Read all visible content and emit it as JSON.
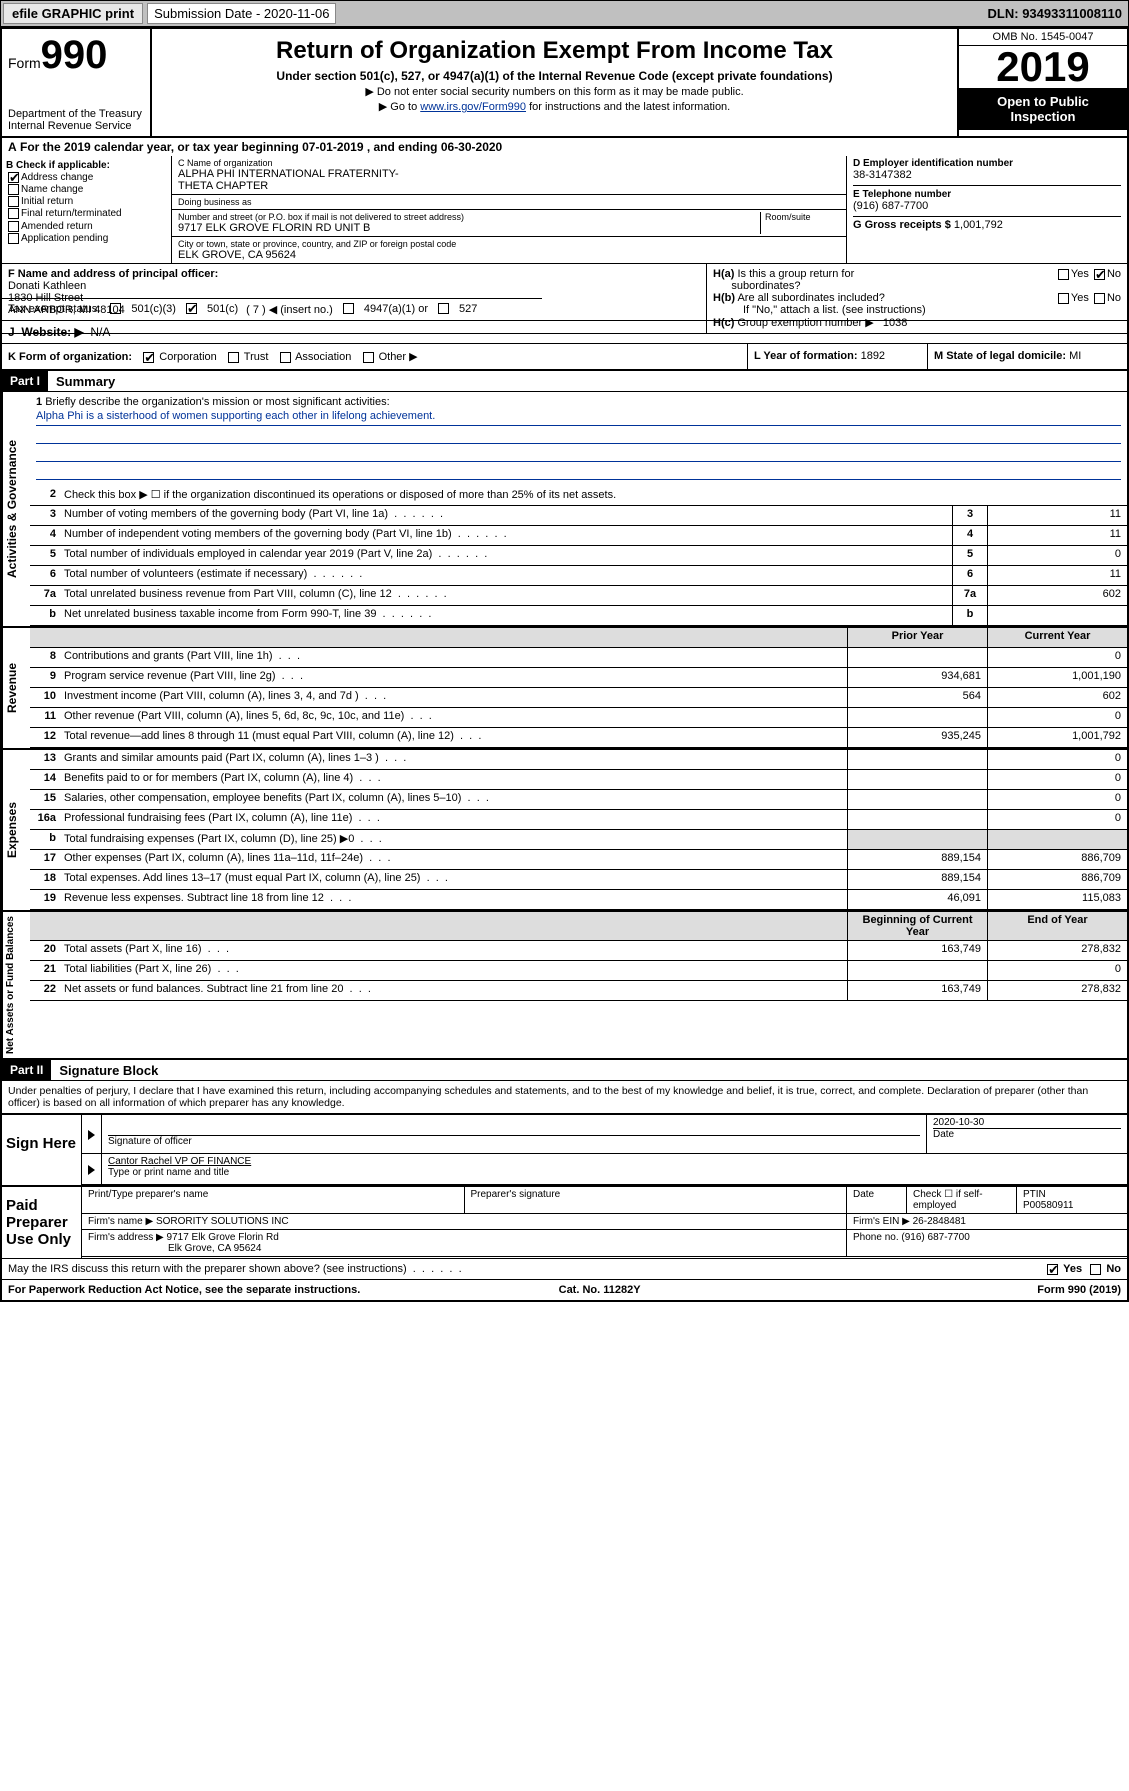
{
  "topbar": {
    "efile": "efile GRAPHIC print",
    "subLabel": "Submission Date - 2020-11-06",
    "dln": "DLN: 93493311008110"
  },
  "header": {
    "form": "Form",
    "num": "990",
    "dept": "Department of the Treasury",
    "irs": "Internal Revenue Service",
    "title": "Return of Organization Exempt From Income Tax",
    "sub": "Under section 501(c), 527, or 4947(a)(1) of the Internal Revenue Code (except private foundations)",
    "note1": "▶ Do not enter social security numbers on this form as it may be made public.",
    "note2a": "▶ Go to ",
    "note2link": "www.irs.gov/Form990",
    "note2b": " for instructions and the latest information.",
    "omb": "OMB No. 1545-0047",
    "year": "2019",
    "open": "Open to Public Inspection"
  },
  "periodA": {
    "text": "For the 2019 calendar year, or tax year beginning 07-01-2019    , and ending 06-30-2020",
    "label": "A"
  },
  "boxB": {
    "title": "B Check if applicable:",
    "items": [
      "Address change",
      "Name change",
      "Initial return",
      "Final return/terminated",
      "Amended return",
      "Application pending"
    ],
    "checked": [
      true,
      false,
      false,
      false,
      false,
      false
    ]
  },
  "boxC": {
    "nameLbl": "C Name of organization",
    "name": "ALPHA PHI INTERNATIONAL FRATERNITY-\nTHETA CHAPTER",
    "dbaLbl": "Doing business as",
    "dba": "",
    "addrLbl": "Number and street (or P.O. box if mail is not delivered to street address)",
    "room": "Room/suite",
    "addr": "9717 ELK GROVE FLORIN RD UNIT B",
    "cityLbl": "City or town, state or province, country, and ZIP or foreign postal code",
    "city": "ELK GROVE, CA  95624"
  },
  "boxD": {
    "einLbl": "D Employer identification number",
    "ein": "38-3147382",
    "telLbl": "E Telephone number",
    "tel": "(916) 687-7700",
    "grossLbl": "G Gross receipts $",
    "gross": "1,001,792"
  },
  "boxF": {
    "lbl": "F  Name and address of principal officer:",
    "name": "Donati Kathleen",
    "addr1": "1830 Hill Street",
    "addr2": "ANN ARBOR, MI  48104"
  },
  "boxH": {
    "a": "Is this a group return for",
    "a2": "subordinates?",
    "b": "Are all subordinates included?",
    "bnote": "If \"No,\" attach a list. (see instructions)",
    "c": "Group exemption number ▶",
    "cval": "1038"
  },
  "taxStatus": {
    "lbl": "Tax-exempt status:",
    "insert": "( 7 ) ◀ (insert no.)"
  },
  "rowJ": {
    "lbl": "Website: ▶",
    "val": "N/A"
  },
  "rowK": {
    "lbl": "K Form of organization:",
    "opts": [
      "Corporation",
      "Trust",
      "Association",
      "Other ▶"
    ],
    "checked": [
      true,
      false,
      false,
      false
    ],
    "yearLbl": "L Year of formation:",
    "year": "1892",
    "stateLbl": "M State of legal domicile:",
    "state": "MI"
  },
  "part1": {
    "label": "Part I",
    "title": "Summary"
  },
  "mission": {
    "num": "1",
    "lbl": "Briefly describe the organization's mission or most significant activities:",
    "text": "Alpha Phi is a sisterhood of women supporting each other in lifelong achievement."
  },
  "line2": {
    "num": "2",
    "text": "Check this box ▶ ☐  if the organization discontinued its operations or disposed of more than 25% of its net assets."
  },
  "govLines": [
    {
      "num": "3",
      "desc": "Number of voting members of the governing body (Part VI, line 1a)",
      "val": "11"
    },
    {
      "num": "4",
      "desc": "Number of independent voting members of the governing body (Part VI, line 1b)",
      "val": "11"
    },
    {
      "num": "5",
      "desc": "Total number of individuals employed in calendar year 2019 (Part V, line 2a)",
      "val": "0"
    },
    {
      "num": "6",
      "desc": "Total number of volunteers (estimate if necessary)",
      "val": "11"
    },
    {
      "num": "7a",
      "desc": "Total unrelated business revenue from Part VIII, column (C), line 12",
      "val": "602"
    },
    {
      "num": "b",
      "desc": "Net unrelated business taxable income from Form 990-T, line 39",
      "val": ""
    }
  ],
  "colHdr": {
    "prior": "Prior Year",
    "curr": "Current Year"
  },
  "revenue": [
    {
      "num": "8",
      "desc": "Contributions and grants (Part VIII, line 1h)",
      "p": "",
      "c": "0"
    },
    {
      "num": "9",
      "desc": "Program service revenue (Part VIII, line 2g)",
      "p": "934,681",
      "c": "1,001,190"
    },
    {
      "num": "10",
      "desc": "Investment income (Part VIII, column (A), lines 3, 4, and 7d )",
      "p": "564",
      "c": "602"
    },
    {
      "num": "11",
      "desc": "Other revenue (Part VIII, column (A), lines 5, 6d, 8c, 9c, 10c, and 11e)",
      "p": "",
      "c": "0"
    },
    {
      "num": "12",
      "desc": "Total revenue—add lines 8 through 11 (must equal Part VIII, column (A), line 12)",
      "p": "935,245",
      "c": "1,001,792"
    }
  ],
  "expenses": [
    {
      "num": "13",
      "desc": "Grants and similar amounts paid (Part IX, column (A), lines 1–3 )",
      "p": "",
      "c": "0"
    },
    {
      "num": "14",
      "desc": "Benefits paid to or for members (Part IX, column (A), line 4)",
      "p": "",
      "c": "0"
    },
    {
      "num": "15",
      "desc": "Salaries, other compensation, employee benefits (Part IX, column (A), lines 5–10)",
      "p": "",
      "c": "0"
    },
    {
      "num": "16a",
      "desc": "Professional fundraising fees (Part IX, column (A), line 11e)",
      "p": "",
      "c": "0"
    },
    {
      "num": "b",
      "desc": "Total fundraising expenses (Part IX, column (D), line 25) ▶0",
      "p": "grey",
      "c": "grey"
    },
    {
      "num": "17",
      "desc": "Other expenses (Part IX, column (A), lines 11a–11d, 11f–24e)",
      "p": "889,154",
      "c": "886,709"
    },
    {
      "num": "18",
      "desc": "Total expenses. Add lines 13–17 (must equal Part IX, column (A), line 25)",
      "p": "889,154",
      "c": "886,709"
    },
    {
      "num": "19",
      "desc": "Revenue less expenses. Subtract line 18 from line 12",
      "p": "46,091",
      "c": "115,083"
    }
  ],
  "netHdr": {
    "beg": "Beginning of Current Year",
    "end": "End of Year"
  },
  "net": [
    {
      "num": "20",
      "desc": "Total assets (Part X, line 16)",
      "p": "163,749",
      "c": "278,832"
    },
    {
      "num": "21",
      "desc": "Total liabilities (Part X, line 26)",
      "p": "",
      "c": "0"
    },
    {
      "num": "22",
      "desc": "Net assets or fund balances. Subtract line 21 from line 20",
      "p": "163,749",
      "c": "278,832"
    }
  ],
  "part2": {
    "label": "Part II",
    "title": "Signature Block"
  },
  "penalty": "Under penalties of perjury, I declare that I have examined this return, including accompanying schedules and statements, and to the best of my knowledge and belief, it is true, correct, and complete. Declaration of preparer (other than officer) is based on all information of which preparer has any knowledge.",
  "sign": {
    "here": "Sign Here",
    "sigLbl": "Signature of officer",
    "date": "2020-10-30",
    "dateLbl": "Date",
    "typed": "Cantor Rachel  VP OF FINANCE",
    "typedLbl": "Type or print name and title"
  },
  "paid": {
    "lab": "Paid Preparer Use Only",
    "h1": "Print/Type preparer's name",
    "h2": "Preparer's signature",
    "h3": "Date",
    "h4": "Check ☐ if self-employed",
    "h5": "PTIN",
    "ptin": "P00580911",
    "firmLbl": "Firm's name    ▶",
    "firm": "SORORITY SOLUTIONS INC",
    "einLbl": "Firm's EIN ▶",
    "ein": "26-2848481",
    "addrLbl": "Firm's address ▶",
    "addr": "9717 Elk Grove Florin Rd",
    "addr2": "Elk Grove, CA  95624",
    "phLbl": "Phone no.",
    "ph": "(916) 687-7700"
  },
  "discuss": "May the IRS discuss this return with the preparer shown above? (see instructions)",
  "foot": {
    "l": "For Paperwork Reduction Act Notice, see the separate instructions.",
    "m": "Cat. No. 11282Y",
    "r": "Form 990 (2019)"
  }
}
